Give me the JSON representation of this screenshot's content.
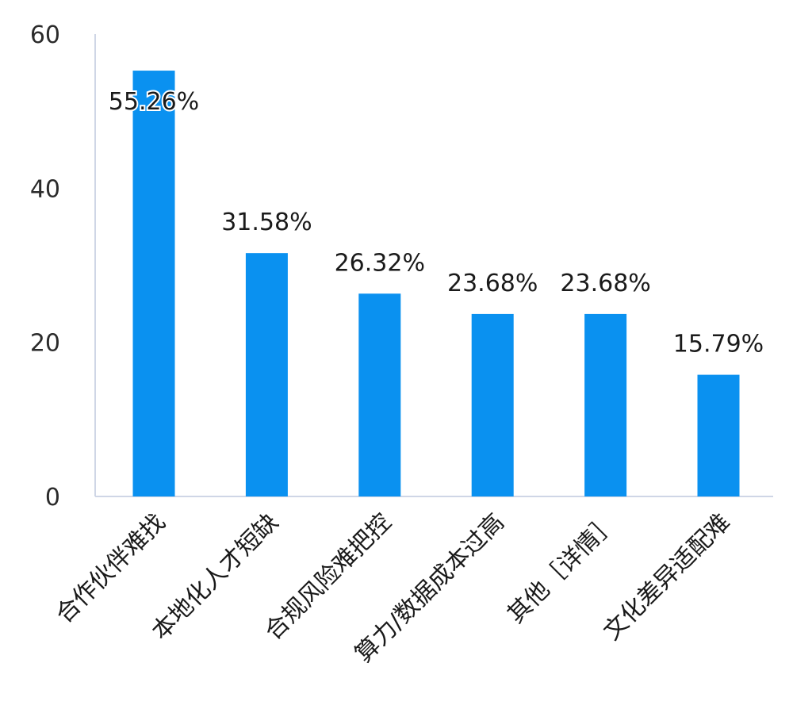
{
  "chart_data": {
    "type": "bar",
    "categories": [
      "合作伙伴难找",
      "本地化人才短缺",
      "合规风险难把控",
      "算力/数据成本过高",
      "其他［详情］",
      "文化差异适配难"
    ],
    "values": [
      55.26,
      31.58,
      26.32,
      23.68,
      23.68,
      15.79
    ],
    "data_labels": [
      "55.26%",
      "31.58%",
      "26.32%",
      "23.68%",
      "23.68%",
      "15.79%"
    ],
    "y_ticks": [
      "0",
      "20",
      "40",
      "60"
    ],
    "ylim": [
      0,
      60
    ],
    "title": "",
    "xlabel": "",
    "ylabel": "",
    "grid": false,
    "legend": "none",
    "colors": {
      "bar": "#0a91f0",
      "axis": "#cfd6e6",
      "text": "#1a1a1a"
    }
  }
}
